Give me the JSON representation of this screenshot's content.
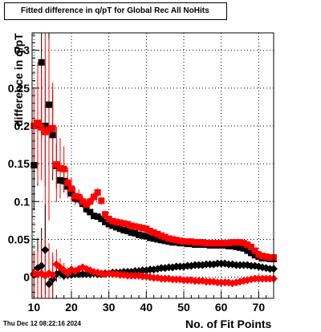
{
  "title": "Fitted difference in q/pT for Global Rec All NoHits",
  "timestamp": "Thu Dec 12 08:22:16 2024",
  "chart_data": {
    "type": "scatter",
    "title": "Fitted difference in q/pT for Global Rec All NoHits",
    "xlabel": "No. of Fit Points",
    "ylabel": "difference in q/pT",
    "xlim": [
      9.5,
      74
    ],
    "ylim": [
      -0.028,
      0.323
    ],
    "x_ticks": [
      10,
      20,
      30,
      40,
      50,
      60,
      70
    ],
    "x_tick_labels": [
      "10",
      "20",
      "30",
      "40",
      "50",
      "60",
      "70"
    ],
    "y_ticks": [
      0,
      0.05,
      0.1,
      0.15,
      0.2,
      0.25,
      0.3
    ],
    "y_tick_labels": [
      "0",
      "0.05",
      "0.1",
      "0.15",
      "0.2",
      "0.25",
      "0.3"
    ],
    "grid": true,
    "legend": "none",
    "series": [
      {
        "marker": "square",
        "color": "#000000",
        "error_color": "#000000",
        "x": [
          10,
          11,
          12,
          13,
          14,
          15,
          16,
          17,
          18,
          19,
          20,
          21,
          22,
          23,
          24,
          25,
          26,
          27,
          28,
          29,
          30,
          31,
          32,
          33,
          34,
          35,
          36,
          37,
          38,
          39,
          40,
          41,
          42,
          43,
          44,
          45,
          46,
          47,
          48,
          49,
          50,
          51,
          52,
          53,
          54,
          55,
          56,
          57,
          58,
          59,
          60,
          61,
          62,
          63,
          64,
          65,
          66,
          67,
          68,
          69,
          70,
          71,
          72,
          73,
          74
        ],
        "y": [
          0.148,
          0.201,
          0.284,
          0.2,
          0.228,
          0.188,
          0.147,
          0.128,
          0.127,
          0.12,
          0.111,
          0.104,
          0.103,
          0.097,
          0.09,
          0.086,
          0.081,
          0.08,
          0.077,
          0.073,
          0.07,
          0.068,
          0.066,
          0.064,
          0.062,
          0.061,
          0.059,
          0.058,
          0.056,
          0.055,
          0.054,
          0.052,
          0.051,
          0.05,
          0.049,
          0.048,
          0.047,
          0.046,
          0.046,
          0.045,
          0.045,
          0.044,
          0.044,
          0.043,
          0.043,
          0.043,
          0.043,
          0.042,
          0.042,
          0.042,
          0.042,
          0.042,
          0.041,
          0.041,
          0.04,
          0.039,
          0.038,
          0.035,
          0.032,
          0.029,
          0.027,
          0.025,
          0.025,
          0.024,
          0.024
        ],
        "err": [
          0.06,
          0.08,
          0.1,
          0.08,
          0.12,
          0.06,
          0.03,
          0.02,
          0.015,
          0.012,
          0.008,
          0.006,
          0.006,
          0.005,
          0.005,
          0.004,
          0.004,
          0.004,
          0.004,
          0.003,
          0.003,
          0.003,
          0.003,
          0.003,
          0.003,
          0.003,
          0.003,
          0.003,
          0.003,
          0.003,
          0.002,
          0.002,
          0.002,
          0.002,
          0.002,
          0.002,
          0.002,
          0.002,
          0.002,
          0.002,
          0.002,
          0.002,
          0.002,
          0.002,
          0.002,
          0.002,
          0.002,
          0.002,
          0.002,
          0.002,
          0.002,
          0.002,
          0.002,
          0.002,
          0.002,
          0.002,
          0.002,
          0.002,
          0.002,
          0.002,
          0.002,
          0.002,
          0.002,
          0.002,
          0.002
        ]
      },
      {
        "marker": "square",
        "color": "#ff0000",
        "error_color": "#ff0000",
        "x": [
          10,
          11,
          12,
          13,
          14,
          15,
          16,
          17,
          18,
          19,
          20,
          21,
          22,
          23,
          24,
          25,
          26,
          27,
          28,
          29,
          30,
          31,
          32,
          33,
          34,
          35,
          36,
          37,
          38,
          39,
          40,
          41,
          42,
          43,
          44,
          45,
          46,
          47,
          48,
          49,
          50,
          51,
          52,
          53,
          54,
          55,
          56,
          57,
          58,
          59,
          60,
          61,
          62,
          63,
          64,
          65,
          66,
          67,
          68,
          69,
          70,
          71,
          72,
          73,
          74
        ],
        "y": [
          0.2,
          0.204,
          0.198,
          0.192,
          0.195,
          0.197,
          0.149,
          0.144,
          0.143,
          0.125,
          0.117,
          0.107,
          0.106,
          0.1,
          0.096,
          0.1,
          0.106,
          0.112,
          0.101,
          0.083,
          0.077,
          0.074,
          0.073,
          0.072,
          0.071,
          0.07,
          0.068,
          0.067,
          0.066,
          0.065,
          0.064,
          0.061,
          0.059,
          0.057,
          0.055,
          0.053,
          0.051,
          0.05,
          0.049,
          0.048,
          0.047,
          0.047,
          0.047,
          0.046,
          0.046,
          0.046,
          0.045,
          0.045,
          0.045,
          0.045,
          0.045,
          0.045,
          0.045,
          0.046,
          0.046,
          0.046,
          0.045,
          0.043,
          0.04,
          0.035,
          0.03,
          0.028,
          0.027,
          0.026,
          0.026
        ],
        "err": [
          0.05,
          0.08,
          0.07,
          0.15,
          0.12,
          0.06,
          0.05,
          0.04,
          0.03,
          0.02,
          0.015,
          0.012,
          0.01,
          0.008,
          0.007,
          0.006,
          0.006,
          0.006,
          0.005,
          0.005,
          0.004,
          0.004,
          0.004,
          0.003,
          0.003,
          0.003,
          0.003,
          0.003,
          0.003,
          0.003,
          0.003,
          0.003,
          0.003,
          0.003,
          0.003,
          0.003,
          0.003,
          0.003,
          0.003,
          0.003,
          0.003,
          0.003,
          0.003,
          0.003,
          0.003,
          0.003,
          0.003,
          0.003,
          0.003,
          0.003,
          0.003,
          0.003,
          0.003,
          0.003,
          0.003,
          0.003,
          0.003,
          0.003,
          0.003,
          0.003,
          0.003,
          0.003,
          0.003,
          0.003,
          0.003
        ]
      },
      {
        "marker": "diamond",
        "color": "#000000",
        "error_color": "#000000",
        "x": [
          10,
          11,
          12,
          13,
          14,
          15,
          16,
          17,
          18,
          19,
          20,
          21,
          22,
          23,
          24,
          25,
          26,
          27,
          28,
          29,
          30,
          31,
          32,
          33,
          34,
          35,
          36,
          37,
          38,
          39,
          40,
          41,
          42,
          43,
          44,
          45,
          46,
          47,
          48,
          49,
          50,
          51,
          52,
          53,
          54,
          55,
          56,
          57,
          58,
          59,
          60,
          61,
          62,
          63,
          64,
          65,
          66,
          67,
          68,
          69,
          70,
          71,
          72,
          73,
          74
        ],
        "y": [
          0.003,
          0.012,
          0.015,
          0.036,
          -0.009,
          -0.003,
          0.004,
          0.006,
          0.002,
          0.003,
          0.003,
          0.004,
          0.004,
          0.004,
          0.004,
          0.004,
          0.005,
          0.004,
          0.004,
          0.005,
          0.005,
          0.006,
          0.006,
          0.006,
          0.007,
          0.007,
          0.007,
          0.008,
          0.008,
          0.009,
          0.009,
          0.01,
          0.01,
          0.011,
          0.012,
          0.012,
          0.013,
          0.013,
          0.014,
          0.014,
          0.014,
          0.015,
          0.015,
          0.016,
          0.016,
          0.016,
          0.017,
          0.017,
          0.017,
          0.018,
          0.018,
          0.018,
          0.017,
          0.017,
          0.016,
          0.016,
          0.016,
          0.016,
          0.015,
          0.015,
          0.014,
          0.013,
          0.012,
          0.011,
          0.011
        ],
        "err": [
          0.03,
          0.04,
          0.05,
          0.06,
          0.05,
          0.03,
          0.01,
          0.008,
          0.006,
          0.005,
          0.004,
          0.003,
          0.003,
          0.003,
          0.003,
          0.003,
          0.002,
          0.002,
          0.002,
          0.002,
          0.002,
          0.002,
          0.002,
          0.002,
          0.002,
          0.002,
          0.002,
          0.002,
          0.002,
          0.002,
          0.002,
          0.002,
          0.002,
          0.002,
          0.002,
          0.002,
          0.002,
          0.002,
          0.002,
          0.002,
          0.002,
          0.002,
          0.002,
          0.002,
          0.002,
          0.002,
          0.002,
          0.002,
          0.002,
          0.002,
          0.002,
          0.002,
          0.002,
          0.002,
          0.002,
          0.002,
          0.002,
          0.002,
          0.002,
          0.002,
          0.002,
          0.002,
          0.002,
          0.002,
          0.002
        ]
      },
      {
        "marker": "diamond",
        "color": "#ff0000",
        "error_color": "#ff0000",
        "x": [
          10,
          11,
          12,
          13,
          14,
          15,
          16,
          17,
          18,
          19,
          20,
          21,
          22,
          23,
          24,
          25,
          26,
          27,
          28,
          29,
          30,
          31,
          32,
          33,
          34,
          35,
          36,
          37,
          38,
          39,
          40,
          41,
          42,
          43,
          44,
          45,
          46,
          47,
          48,
          49,
          50,
          51,
          52,
          53,
          54,
          55,
          56,
          57,
          58,
          59,
          60,
          61,
          62,
          63,
          64,
          65,
          66,
          67,
          68,
          69,
          70,
          71,
          72,
          73,
          74
        ],
        "y": [
          0.005,
          0.004,
          0.005,
          0.002,
          0.005,
          0.003,
          0.017,
          0.013,
          0.009,
          0.005,
          0.01,
          0.008,
          0.011,
          0.013,
          0.011,
          0.009,
          0.007,
          0.006,
          0.005,
          0.004,
          0.005,
          0.004,
          0.004,
          0.003,
          0.003,
          0.002,
          0.002,
          0.002,
          0.002,
          0.001,
          0.001,
          0.0,
          -0.001,
          -0.001,
          -0.002,
          -0.002,
          -0.002,
          -0.003,
          -0.003,
          -0.003,
          -0.004,
          -0.004,
          -0.004,
          -0.005,
          -0.005,
          -0.005,
          -0.006,
          -0.006,
          -0.006,
          -0.007,
          -0.007,
          -0.007,
          -0.007,
          -0.008,
          -0.007,
          -0.006,
          -0.005,
          -0.004,
          -0.003,
          -0.002,
          -0.002,
          -0.002,
          -0.002,
          -0.002,
          -0.002
        ],
        "err": [
          0.03,
          0.03,
          0.04,
          0.05,
          0.04,
          0.03,
          0.02,
          0.012,
          0.01,
          0.008,
          0.006,
          0.005,
          0.004,
          0.004,
          0.004,
          0.003,
          0.003,
          0.003,
          0.003,
          0.003,
          0.002,
          0.002,
          0.002,
          0.002,
          0.002,
          0.002,
          0.002,
          0.002,
          0.002,
          0.002,
          0.002,
          0.002,
          0.002,
          0.002,
          0.002,
          0.002,
          0.002,
          0.002,
          0.002,
          0.002,
          0.002,
          0.002,
          0.002,
          0.002,
          0.002,
          0.002,
          0.002,
          0.002,
          0.002,
          0.002,
          0.002,
          0.002,
          0.002,
          0.002,
          0.002,
          0.002,
          0.002,
          0.002,
          0.002,
          0.002,
          0.002,
          0.002,
          0.002,
          0.002,
          0.002
        ]
      }
    ]
  }
}
